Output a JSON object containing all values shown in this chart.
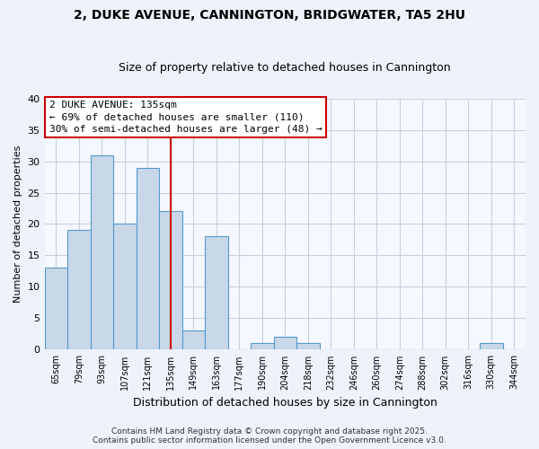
{
  "title": "2, DUKE AVENUE, CANNINGTON, BRIDGWATER, TA5 2HU",
  "subtitle": "Size of property relative to detached houses in Cannington",
  "xlabel": "Distribution of detached houses by size in Cannington",
  "ylabel": "Number of detached properties",
  "bin_labels": [
    "65sqm",
    "79sqm",
    "93sqm",
    "107sqm",
    "121sqm",
    "135sqm",
    "149sqm",
    "163sqm",
    "177sqm",
    "190sqm",
    "204sqm",
    "218sqm",
    "232sqm",
    "246sqm",
    "260sqm",
    "274sqm",
    "288sqm",
    "302sqm",
    "316sqm",
    "330sqm",
    "344sqm"
  ],
  "bar_values": [
    13,
    19,
    31,
    20,
    29,
    22,
    3,
    18,
    0,
    1,
    2,
    1,
    0,
    0,
    0,
    0,
    0,
    0,
    0,
    1,
    0
  ],
  "ylim": [
    0,
    40
  ],
  "yticks": [
    0,
    5,
    10,
    15,
    20,
    25,
    30,
    35,
    40
  ],
  "bar_color": "#c8d8e8",
  "bar_edge_color": "#5599cc",
  "vline_x_index": 5,
  "vline_color": "#cc0000",
  "annotation_title": "2 DUKE AVENUE: 135sqm",
  "annotation_line1": "← 69% of detached houses are smaller (110)",
  "annotation_line2": "30% of semi-detached houses are larger (48) →",
  "footer_line1": "Contains HM Land Registry data © Crown copyright and database right 2025.",
  "footer_line2": "Contains public sector information licensed under the Open Government Licence v3.0.",
  "background_color": "#eef2fb",
  "plot_background_color": "#f5f8ff",
  "grid_color": "#c8d0e0"
}
